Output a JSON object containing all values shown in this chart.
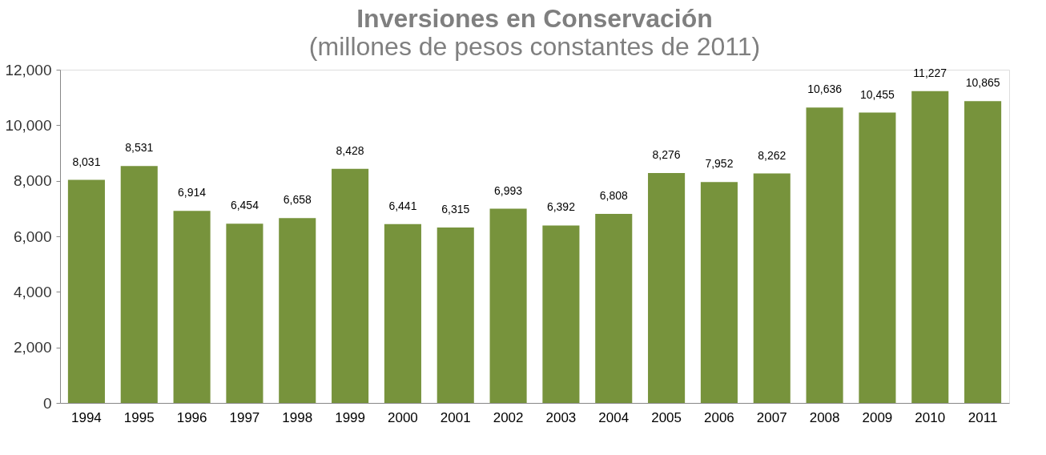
{
  "chart_data": {
    "type": "bar",
    "title": "Inversiones en Conservación",
    "subtitle": "(millones de pesos constantes de 2011)",
    "categories": [
      "1994",
      "1995",
      "1996",
      "1997",
      "1998",
      "1999",
      "2000",
      "2001",
      "2002",
      "2003",
      "2004",
      "2005",
      "2006",
      "2007",
      "2008",
      "2009",
      "2010",
      "2011"
    ],
    "values": [
      8031,
      8531,
      6914,
      6454,
      6658,
      8428,
      6441,
      6315,
      6993,
      6392,
      6808,
      8276,
      7952,
      8262,
      10636,
      10455,
      11227,
      10865
    ],
    "value_labels": [
      "8,031",
      "8,531",
      "6,914",
      "6,454",
      "6,658",
      "8,428",
      "6,441",
      "6,315",
      "6,993",
      "6,392",
      "6,808",
      "8,276",
      "7,952",
      "8,262",
      "10,636",
      "10,455",
      "11,227",
      "10,865"
    ],
    "color": "#77933c",
    "ylim": [
      0,
      12000
    ],
    "yticks": [
      {
        "value": 0,
        "label": "0"
      },
      {
        "value": 2000,
        "label": "2,000"
      },
      {
        "value": 4000,
        "label": "4,000"
      },
      {
        "value": 6000,
        "label": "6,000"
      },
      {
        "value": 8000,
        "label": "8,000"
      },
      {
        "value": 10000,
        "label": "10,000"
      },
      {
        "value": 12000,
        "label": "12,000"
      }
    ],
    "grid": false
  }
}
